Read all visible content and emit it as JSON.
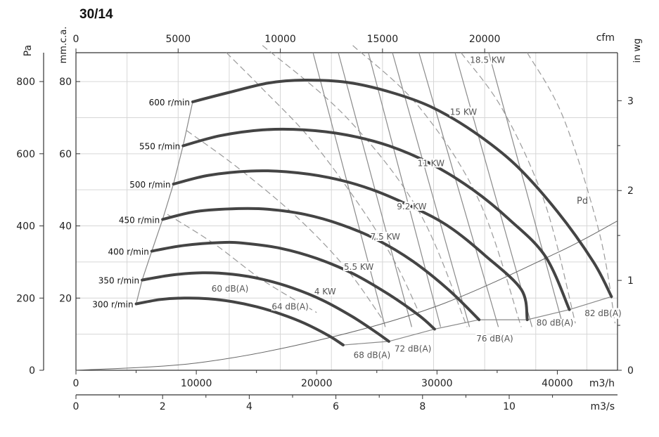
{
  "chart_data": {
    "type": "line",
    "title": "30/14",
    "axes": {
      "x_bottom": {
        "label": "m3/h",
        "range": [
          0,
          45000
        ],
        "ticks": [
          0,
          10000,
          20000,
          30000,
          40000
        ]
      },
      "x_bottom2": {
        "label": "m3/s",
        "range": [
          0,
          12.5
        ],
        "ticks": [
          0,
          2,
          4,
          6,
          8,
          10
        ]
      },
      "x_top": {
        "label": "cfm",
        "range": [
          0,
          26500
        ],
        "ticks": [
          0,
          5000,
          10000,
          15000,
          20000
        ]
      },
      "y_left_outer": {
        "label": "Pa",
        "range": [
          0,
          800
        ],
        "ticks": [
          0,
          200,
          400,
          600,
          800
        ]
      },
      "y_left_inner": {
        "label": "mm.c.a.",
        "range": [
          0,
          80
        ],
        "ticks": [
          20,
          40,
          60,
          80
        ]
      },
      "y_right": {
        "label": "in wg",
        "range": [
          0,
          3.2
        ],
        "ticks": [
          0,
          1,
          2,
          3
        ]
      }
    },
    "grid": true,
    "speed_curves": [
      {
        "name": "300 r/min",
        "points": [
          [
            5000,
            184
          ],
          [
            7000,
            196
          ],
          [
            9000,
            200
          ],
          [
            11000,
            198
          ],
          [
            13000,
            190
          ],
          [
            15000,
            176
          ],
          [
            17000,
            156
          ],
          [
            19000,
            130
          ],
          [
            21000,
            96
          ],
          [
            22200,
            70
          ]
        ]
      },
      {
        "name": "350 r/min",
        "points": [
          [
            5500,
            250
          ],
          [
            8000,
            264
          ],
          [
            10500,
            270
          ],
          [
            13000,
            266
          ],
          [
            15500,
            252
          ],
          [
            18000,
            228
          ],
          [
            20500,
            194
          ],
          [
            23000,
            148
          ],
          [
            25000,
            104
          ],
          [
            26000,
            80
          ]
        ]
      },
      {
        "name": "400 r/min",
        "points": [
          [
            6300,
            330
          ],
          [
            9000,
            346
          ],
          [
            12000,
            354
          ],
          [
            14000,
            352
          ],
          [
            17000,
            338
          ],
          [
            20000,
            310
          ],
          [
            23000,
            268
          ],
          [
            26000,
            210
          ],
          [
            28500,
            152
          ],
          [
            29800,
            114
          ]
        ]
      },
      {
        "name": "450 r/min",
        "points": [
          [
            7200,
            418
          ],
          [
            10000,
            440
          ],
          [
            13500,
            448
          ],
          [
            16000,
            446
          ],
          [
            19000,
            432
          ],
          [
            22000,
            404
          ],
          [
            25000,
            362
          ],
          [
            28000,
            302
          ],
          [
            31000,
            222
          ],
          [
            33500,
            140
          ]
        ]
      },
      {
        "name": "500 r/min",
        "points": [
          [
            8100,
            516
          ],
          [
            11000,
            540
          ],
          [
            14500,
            552
          ],
          [
            17500,
            550
          ],
          [
            21000,
            534
          ],
          [
            24500,
            502
          ],
          [
            28000,
            452
          ],
          [
            31000,
            398
          ],
          [
            34000,
            318
          ],
          [
            37000,
            224
          ],
          [
            37500,
            140
          ]
        ]
      },
      {
        "name": "550 r/min",
        "points": [
          [
            8900,
            622
          ],
          [
            12000,
            650
          ],
          [
            15500,
            666
          ],
          [
            19000,
            666
          ],
          [
            22500,
            652
          ],
          [
            26000,
            622
          ],
          [
            29500,
            572
          ],
          [
            33000,
            500
          ],
          [
            36000,
            418
          ],
          [
            39000,
            316
          ],
          [
            41000,
            168
          ]
        ]
      },
      {
        "name": "600 r/min",
        "points": [
          [
            9700,
            744
          ],
          [
            12500,
            768
          ],
          [
            16000,
            796
          ],
          [
            19000,
            804
          ],
          [
            22500,
            798
          ],
          [
            26000,
            772
          ],
          [
            29500,
            730
          ],
          [
            33000,
            662
          ],
          [
            36500,
            570
          ],
          [
            40000,
            440
          ],
          [
            43000,
            300
          ],
          [
            44500,
            204
          ]
        ]
      }
    ],
    "speed_labels": [
      "300 r/min",
      "350 r/min",
      "400 r/min",
      "450 r/min",
      "500 r/min",
      "550 r/min",
      "600 r/min"
    ],
    "power_lines": [
      {
        "label": "4 KW",
        "x": [
          19700,
          25700
        ]
      },
      {
        "label": "5.5 KW",
        "x": [
          21800,
          27900
        ]
      },
      {
        "label": "7.5 KW",
        "x": [
          24300,
          30300
        ]
      },
      {
        "label": "9.2 KW",
        "x": [
          26300,
          32700
        ]
      },
      {
        "label": "11 KW",
        "x": [
          28500,
          35100
        ]
      },
      {
        "label": "15 KW",
        "x": [
          31500,
          37900
        ]
      },
      {
        "label": "18.5 KW",
        "x": [
          34300,
          40500
        ]
      }
    ],
    "noise_lines": [
      {
        "label": "60 dB(A)",
        "points": [
          [
            7600,
            432
          ],
          [
            11500,
            350
          ],
          [
            15500,
            250
          ],
          [
            20000,
            160
          ]
        ]
      },
      {
        "label": "64 dB(A)",
        "points": [
          [
            9200,
            664
          ],
          [
            13500,
            560
          ],
          [
            18500,
            420
          ],
          [
            22500,
            280
          ],
          [
            25500,
            140
          ]
        ]
      },
      {
        "label": "68 dB(A)",
        "points": [
          [
            12500,
            880
          ],
          [
            15500,
            780
          ],
          [
            19500,
            640
          ],
          [
            23500,
            460
          ],
          [
            26500,
            300
          ],
          [
            28500,
            160
          ]
        ]
      },
      {
        "label": "72 dB(A)",
        "points": [
          [
            15500,
            900
          ],
          [
            22500,
            700
          ],
          [
            28500,
            440
          ],
          [
            32500,
            120
          ]
        ]
      },
      {
        "label": "76 dB(A)",
        "points": [
          [
            23000,
            900
          ],
          [
            28500,
            730
          ],
          [
            33500,
            470
          ],
          [
            37000,
            120
          ]
        ]
      },
      {
        "label": "80 dB(A)",
        "points": [
          [
            32000,
            880
          ],
          [
            35500,
            720
          ],
          [
            39000,
            460
          ],
          [
            41500,
            130
          ]
        ]
      },
      {
        "label": "82 dB(A)",
        "points": [
          [
            37500,
            880
          ],
          [
            40500,
            700
          ],
          [
            43500,
            380
          ],
          [
            44800,
            130
          ]
        ]
      }
    ],
    "pd_line": {
      "label": "Pd",
      "points": [
        [
          0,
          0
        ],
        [
          10000,
          20
        ],
        [
          20000,
          82
        ],
        [
          30000,
          178
        ],
        [
          40000,
          326
        ],
        [
          45000,
          414
        ]
      ]
    }
  }
}
